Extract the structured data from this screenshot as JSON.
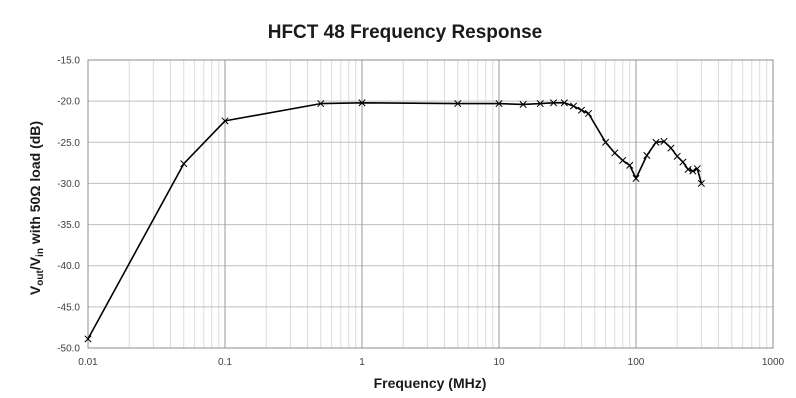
{
  "chart_data": {
    "type": "line",
    "title": "HFCT 48 Frequency Response",
    "xlabel": "Frequency (MHz)",
    "ylabel": {
      "prefix": "V",
      "sub1": "out",
      "mid": "/V",
      "sub2": "in",
      "suffix": " with 50Ω load (dB)"
    },
    "x_scale": "log",
    "xlim": [
      0.01,
      1000
    ],
    "ylim": [
      -50,
      -15
    ],
    "grid": true,
    "marker": "x",
    "x_tick_labels": [
      "0.01",
      "0.1",
      "1",
      "10",
      "100",
      "1000"
    ],
    "y_tick_labels": [
      "-15.0",
      "-20.0",
      "-25.0",
      "-30.0",
      "-35.0",
      "-40.0",
      "-45.0",
      "-50.0"
    ],
    "series": [
      {
        "color": "#000000",
        "x": [
          0.01,
          0.05,
          0.1,
          0.5,
          1,
          5,
          10,
          15,
          20,
          25,
          30,
          35,
          40,
          45,
          60,
          70,
          80,
          90,
          100,
          120,
          140,
          160,
          180,
          200,
          220,
          240,
          260,
          280,
          300
        ],
        "y": [
          -48.9,
          -27.6,
          -22.4,
          -20.3,
          -20.2,
          -20.3,
          -20.3,
          -20.4,
          -20.3,
          -20.2,
          -20.2,
          -20.6,
          -21.1,
          -21.5,
          -25.0,
          -26.3,
          -27.2,
          -27.8,
          -29.4,
          -26.6,
          -25.0,
          -24.9,
          -25.7,
          -26.7,
          -27.4,
          -28.3,
          -28.5,
          -28.2,
          -30.0
        ]
      }
    ]
  }
}
